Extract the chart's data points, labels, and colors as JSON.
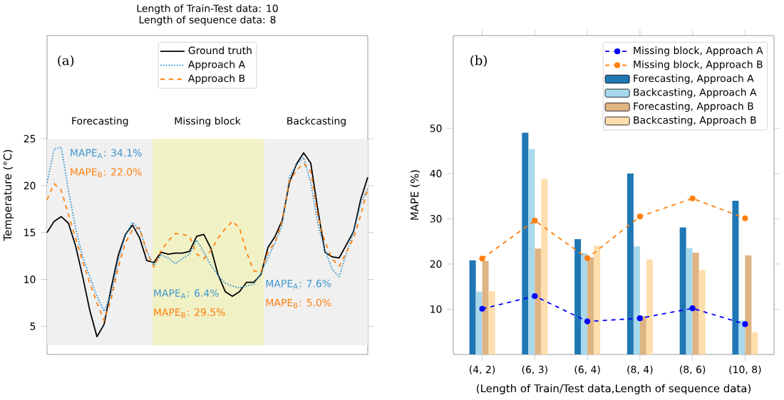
{
  "chart_data": [
    {
      "type": "line",
      "title": "Length of Train-Test data: 10",
      "subtitle": "Length of sequence data: 8",
      "ylabel": "Temperature (°C)",
      "categories": [
        null,
        null,
        null,
        null,
        null,
        null,
        null,
        null,
        null,
        null,
        null,
        null,
        null,
        null,
        null,
        null,
        null,
        null,
        null,
        null,
        null,
        null,
        null,
        null,
        null,
        null,
        null,
        null,
        null,
        null,
        null,
        null,
        null,
        null,
        null,
        null,
        null,
        null,
        null,
        null,
        null,
        null,
        null,
        null,
        null,
        null
      ],
      "ylim": [
        2,
        36
      ],
      "yticks": [
        5,
        10,
        15,
        20,
        25
      ],
      "legend": "top",
      "marker": "none",
      "series": [
        {
          "name": "Ground truth",
          "color": "#000000",
          "line_style": "solid",
          "values": [
            15.0,
            16.2,
            16.7,
            16.0,
            13.6,
            10.3,
            6.7,
            3.9,
            5.2,
            9.1,
            12.6,
            14.8,
            15.8,
            14.4,
            12.0,
            11.8,
            12.9,
            12.7,
            12.8,
            12.8,
            13.0,
            14.6,
            14.8,
            13.3,
            10.5,
            8.7,
            8.2,
            8.7,
            9.7,
            9.7,
            10.5,
            13.4,
            14.6,
            16.3,
            20.3,
            22.3,
            23.5,
            22.4,
            17.4,
            12.9,
            12.4,
            12.3,
            13.7,
            15.1,
            18.5,
            20.9
          ]
        },
        {
          "name": "Approach A",
          "color": "#3e95cd",
          "line_style": "dotted",
          "values": [
            20.3,
            23.9,
            24.1,
            19.5,
            15.5,
            12.4,
            10.3,
            8.2,
            6.6,
            8.4,
            12.0,
            14.7,
            16.1,
            15.3,
            13.0,
            11.5,
            12.6,
            12.3,
            11.7,
            12.2,
            12.7,
            14.2,
            12.9,
            11.5,
            10.4,
            9.6,
            9.3,
            9.1,
            9.3,
            9.5,
            10.6,
            12.3,
            13.9,
            15.8,
            20.9,
            22.2,
            23.0,
            20.3,
            15.9,
            13.1,
            11.1,
            10.3,
            12.8,
            15.0,
            18.0,
            19.7
          ]
        },
        {
          "name": "Approach B",
          "color": "#ff7f0e",
          "line_style": "dashed",
          "values": [
            18.5,
            20.2,
            19.5,
            16.9,
            14.4,
            11.9,
            9.6,
            7.5,
            5.6,
            7.9,
            11.3,
            13.9,
            15.3,
            15.5,
            12.9,
            11.3,
            13.1,
            14.1,
            14.9,
            14.8,
            14.6,
            12.7,
            12.2,
            13.1,
            14.4,
            15.4,
            16.2,
            15.5,
            12.9,
            10.9,
            10.8,
            12.9,
            14.0,
            16.2,
            20.5,
            21.6,
            22.4,
            21.5,
            16.8,
            14.0,
            12.2,
            11.4,
            12.9,
            14.4,
            16.8,
            19.7
          ]
        }
      ],
      "annotations": [
        "(a)",
        "Forecasting",
        "Missing block",
        "Backcasting",
        "MAPE$_{A}$: 34.1%",
        "MAPE$_{B}$: 22.0%",
        "MAPE$_{A}$: 6.4%",
        "MAPE$_{B}$: 29.5%",
        "MAPE$_{A}$: 7.6%",
        "MAPE$_{B}$: 5.0%"
      ]
    },
    {
      "type": "bar",
      "xlabel": "(Length of Train/Test data,Length of sequence data)",
      "ylabel": "MAPE (%)",
      "categories": [
        "(4, 2)",
        "(6, 3)",
        "(6, 4)",
        "(8, 4)",
        "(8, 6)",
        "(10, 8)"
      ],
      "ylim": [
        0,
        70.5
      ],
      "yticks": [
        10,
        20,
        30,
        40,
        50
      ],
      "legend": "top right",
      "series": [
        {
          "name": "Missing block, Approach A",
          "type": "line",
          "color": "#0000ff",
          "line_style": "dashed",
          "marker": "circle",
          "values": [
            10.1,
            12.9,
            7.3,
            8.0,
            10.2,
            6.7
          ]
        },
        {
          "name": "Missing block, Approach B",
          "type": "line",
          "color": "#ff7f0e",
          "line_style": "dashed",
          "marker": "circle",
          "values": [
            21.2,
            29.6,
            21.3,
            30.5,
            34.5,
            30.1
          ]
        },
        {
          "name": "Forecasting, Approach A",
          "color": "#1f77b4",
          "values": [
            20.8,
            49.0,
            25.5,
            40.0,
            28.1,
            34.0
          ]
        },
        {
          "name": "Backcasting, Approach A",
          "color": "#a8d8ec",
          "values": [
            13.9,
            45.4,
            22.4,
            23.9,
            23.5,
            7.5
          ]
        },
        {
          "name": "Forecasting, Approach B",
          "color": "#deb482",
          "values": [
            20.7,
            23.4,
            21.5,
            8.5,
            22.5,
            21.9
          ]
        },
        {
          "name": "Backcasting, Approach B",
          "color": "#ffdead",
          "values": [
            14.0,
            38.8,
            24.0,
            21.0,
            18.7,
            4.9
          ]
        }
      ],
      "annotations": [
        "(b)"
      ]
    }
  ]
}
